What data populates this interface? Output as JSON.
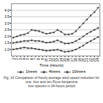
{
  "chart_data": {
    "type": "line",
    "xlabel": "Time (Hours)",
    "caption": "Fig. 14 Comparison of hourly average wind speed reduction for one, four and ten Ficus benjamina\ntree species in 24-hours period",
    "x": [
      1,
      2,
      3,
      4,
      5,
      6,
      7,
      8,
      9,
      10,
      11,
      12,
      13,
      14,
      15,
      16,
      17,
      18,
      19,
      20,
      21,
      22,
      23,
      24
    ],
    "series": [
      {
        "name": "1trees",
        "color": "#444444",
        "marker": "square",
        "line_style": "solid",
        "values": [
          1.0,
          1.05,
          1.1,
          1.15,
          1.1,
          1.1,
          1.05,
          1.0,
          0.95,
          0.9,
          0.92,
          0.95,
          0.98,
          0.9,
          0.82,
          0.85,
          0.9,
          1.0,
          1.15,
          1.3,
          1.5,
          1.65,
          1.8,
          1.95
        ]
      },
      {
        "name": "4trees",
        "color": "#444444",
        "marker": "square",
        "line_style": "solid",
        "values": [
          1.5,
          1.55,
          1.6,
          1.65,
          1.65,
          1.7,
          1.65,
          1.65,
          1.6,
          1.52,
          1.55,
          1.6,
          1.7,
          1.58,
          1.45,
          1.46,
          1.52,
          1.65,
          1.8,
          2.0,
          2.2,
          2.35,
          2.5,
          2.65
        ]
      },
      {
        "name": "10trees",
        "color": "#444444",
        "marker": "square",
        "line_style": "solid",
        "values": [
          1.9,
          2.0,
          2.1,
          2.15,
          2.25,
          2.5,
          2.45,
          2.4,
          2.3,
          2.2,
          2.25,
          2.3,
          2.5,
          2.35,
          2.15,
          2.15,
          2.2,
          2.4,
          2.7,
          3.0,
          3.3,
          3.6,
          3.85,
          4.2
        ]
      }
    ],
    "xlim": [
      0.5,
      24.5
    ],
    "xticks": [
      1,
      2,
      3,
      4,
      5,
      6,
      7,
      8,
      9,
      10,
      11,
      12,
      13,
      14,
      15,
      16,
      17,
      18,
      19,
      20,
      21,
      22,
      23,
      24
    ],
    "ylim": [
      0.5,
      4.5
    ],
    "yticks": [
      {
        "value": 1,
        "label": "1.0"
      },
      1.5,
      {
        "value": 2,
        "label": "2.0"
      },
      2.5,
      {
        "value": 3,
        "label": "3.0"
      },
      3.5,
      {
        "value": 4,
        "label": "4.0"
      }
    ],
    "grid": "y",
    "legend": "bottom"
  }
}
